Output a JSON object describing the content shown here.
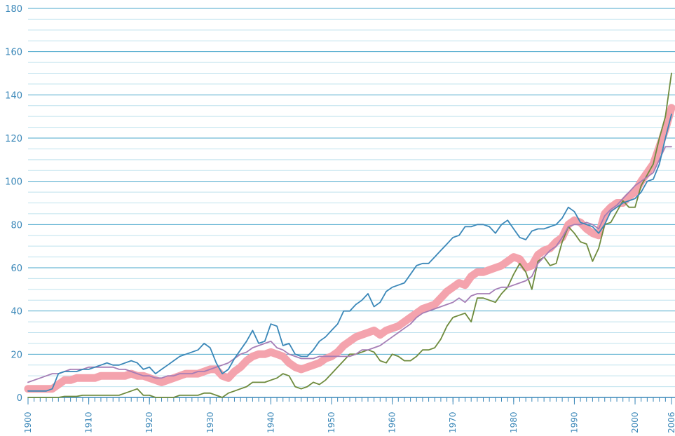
{
  "chart_data": {
    "type": "line",
    "x": [
      1900,
      1901,
      1902,
      1903,
      1904,
      1905,
      1906,
      1907,
      1908,
      1909,
      1910,
      1911,
      1912,
      1913,
      1914,
      1915,
      1916,
      1917,
      1918,
      1919,
      1920,
      1921,
      1922,
      1923,
      1924,
      1925,
      1926,
      1927,
      1928,
      1929,
      1930,
      1931,
      1932,
      1933,
      1934,
      1935,
      1936,
      1937,
      1938,
      1939,
      1940,
      1941,
      1942,
      1943,
      1944,
      1945,
      1946,
      1947,
      1948,
      1949,
      1950,
      1951,
      1952,
      1953,
      1954,
      1955,
      1956,
      1957,
      1958,
      1959,
      1960,
      1961,
      1962,
      1963,
      1964,
      1965,
      1966,
      1967,
      1968,
      1969,
      1970,
      1971,
      1972,
      1973,
      1974,
      1975,
      1976,
      1977,
      1978,
      1979,
      1980,
      1981,
      1982,
      1983,
      1984,
      1985,
      1986,
      1987,
      1988,
      1989,
      1990,
      1991,
      1992,
      1993,
      1994,
      1995,
      1996,
      1997,
      1998,
      1999,
      2000,
      2001,
      2002,
      2003,
      2004,
      2005,
      2006
    ],
    "series": [
      {
        "color": "#f4a3ad",
        "width": 11,
        "values": [
          4,
          4,
          4,
          4,
          4,
          6,
          8,
          8,
          9,
          9,
          9,
          9,
          10,
          10,
          10,
          10,
          10,
          11,
          10,
          10,
          9,
          8,
          7,
          8,
          9,
          10,
          11,
          11,
          11,
          12,
          13,
          13,
          10,
          9,
          12,
          14,
          17,
          19,
          20,
          20,
          21,
          20,
          19,
          16,
          14,
          13,
          14,
          15,
          16,
          18,
          19,
          21,
          24,
          26,
          28,
          29,
          30,
          31,
          29,
          31,
          32,
          33,
          35,
          37,
          39,
          41,
          42,
          43,
          46,
          49,
          51,
          53,
          52,
          56,
          58,
          58,
          59,
          60,
          61,
          63,
          65,
          64,
          60,
          61,
          66,
          68,
          69,
          72,
          74,
          80,
          82,
          81,
          78,
          76,
          75,
          85,
          88,
          90,
          90,
          93,
          95,
          100,
          104,
          108,
          116,
          124,
          134
        ]
      },
      {
        "color": "#6e8b3d",
        "width": 1.8,
        "values": [
          0,
          0,
          0,
          0,
          0,
          0,
          0.5,
          0.5,
          0.5,
          1,
          1,
          1,
          1,
          1,
          1,
          1,
          2,
          3,
          4,
          1,
          1,
          0,
          0,
          0,
          0,
          1,
          1,
          1,
          1,
          2,
          2,
          1,
          0,
          2,
          3,
          4,
          5,
          7,
          7,
          7,
          8,
          9,
          11,
          10,
          5,
          4,
          5,
          7,
          6,
          8,
          11,
          14,
          17,
          20,
          20,
          21,
          22,
          21,
          17,
          16,
          20,
          19,
          17,
          17,
          19,
          22,
          22,
          23,
          27,
          33,
          37,
          38,
          39,
          35,
          46,
          46,
          45,
          44,
          48,
          51,
          57,
          62,
          58,
          50,
          63,
          65,
          61,
          62,
          72,
          79,
          76,
          72,
          71,
          63,
          69,
          80,
          81,
          86,
          91,
          88,
          88,
          98,
          103,
          108,
          120,
          130,
          150
        ]
      },
      {
        "color": "#a57db5",
        "width": 1.8,
        "values": [
          7,
          8,
          9,
          10,
          11,
          11,
          12,
          13,
          13,
          13,
          14,
          14,
          14,
          14,
          14,
          13,
          13,
          12,
          11,
          10,
          10,
          9,
          9,
          10,
          10,
          11,
          11,
          11,
          12,
          12,
          13,
          14,
          15,
          16,
          18,
          20,
          21,
          23,
          24,
          25,
          26,
          23,
          22,
          20,
          19,
          18,
          18,
          18,
          19,
          19,
          19,
          19,
          19,
          19,
          20,
          22,
          22,
          23,
          24,
          26,
          28,
          30,
          32,
          34,
          37,
          39,
          40,
          41,
          42,
          43,
          44,
          46,
          44,
          47,
          48,
          48,
          48,
          50,
          51,
          51,
          52,
          53,
          54,
          56,
          62,
          65,
          68,
          70,
          74,
          79,
          80,
          80,
          81,
          80,
          78,
          84,
          87,
          89,
          92,
          95,
          98,
          100,
          102,
          104,
          110,
          116,
          116
        ]
      },
      {
        "color": "#3a87b8",
        "width": 1.8,
        "values": [
          3,
          3,
          3,
          3,
          4,
          11,
          12,
          12,
          12,
          13,
          13,
          14,
          15,
          16,
          15,
          15,
          16,
          17,
          16,
          13,
          14,
          11,
          13,
          15,
          17,
          19,
          20,
          21,
          22,
          25,
          23,
          16,
          11,
          13,
          18,
          22,
          26,
          31,
          25,
          26,
          34,
          33,
          24,
          25,
          20,
          19,
          19,
          22,
          26,
          28,
          31,
          34,
          40,
          40,
          43,
          45,
          48,
          42,
          44,
          49,
          51,
          52,
          53,
          57,
          61,
          62,
          62,
          65,
          68,
          71,
          74,
          75,
          79,
          79,
          80,
          80,
          79,
          76,
          80,
          82,
          78,
          74,
          73,
          77,
          78,
          78,
          79,
          80,
          83,
          88,
          86,
          81,
          80,
          79,
          76,
          80,
          86,
          88,
          90,
          91,
          92,
          95,
          100,
          101,
          108,
          120,
          131
        ]
      }
    ],
    "xlim": [
      1900,
      2006
    ],
    "xticks": [
      1900,
      1910,
      1920,
      1930,
      1940,
      1950,
      1960,
      1970,
      1980,
      1990,
      2000,
      2006
    ],
    "ylim": [
      0,
      180
    ],
    "yticks": [
      0,
      20,
      40,
      60,
      80,
      100,
      120,
      140,
      160,
      180
    ],
    "yminorticks": [
      5,
      10,
      15,
      25,
      30,
      35,
      45,
      50,
      55,
      65,
      70,
      75,
      85,
      90,
      95,
      105,
      110,
      115,
      125,
      130,
      135,
      145,
      150,
      155,
      165,
      170,
      175
    ],
    "grid": true
  }
}
